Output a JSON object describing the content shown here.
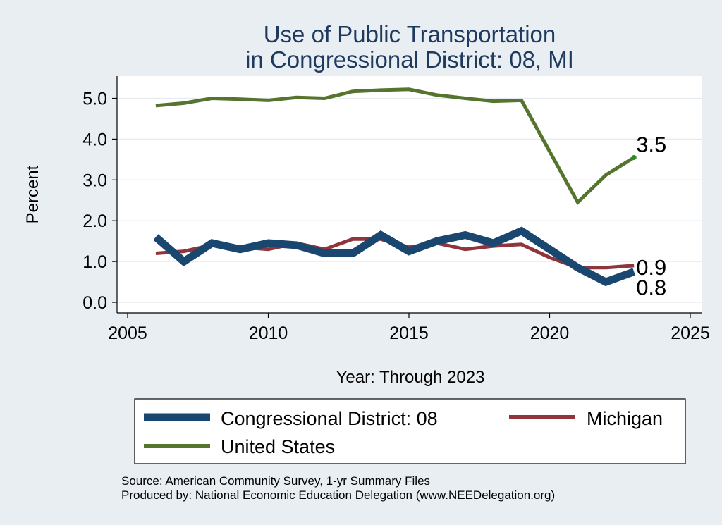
{
  "chart_data": {
    "type": "line",
    "title_line1": "Use of Public Transportation",
    "title_line2": "in Congressional District: 08, MI",
    "xlabel": "Year: Through 2023",
    "ylabel": "Percent",
    "xlim": [
      2005,
      2025
    ],
    "ylim": [
      0,
      5.2
    ],
    "x_ticks": [
      "2005",
      "2010",
      "2015",
      "2020",
      "2025"
    ],
    "y_ticks": [
      "0.0",
      "1.0",
      "2.0",
      "3.0",
      "4.0",
      "5.0"
    ],
    "grid": true,
    "legend_position": "bottom",
    "x": [
      2006,
      2007,
      2008,
      2009,
      2010,
      2011,
      2012,
      2013,
      2014,
      2015,
      2016,
      2017,
      2018,
      2019,
      2020,
      2021,
      2022,
      2023
    ],
    "series": [
      {
        "name": "Congressional District: 08",
        "color": "#1a476f",
        "values": [
          1.6,
          1.0,
          1.45,
          1.3,
          1.45,
          1.4,
          1.2,
          1.2,
          1.65,
          1.25,
          1.5,
          1.65,
          1.45,
          1.75,
          1.3,
          0.85,
          0.5,
          0.75
        ],
        "end_label": "0.8"
      },
      {
        "name": "Michigan",
        "color": "#90353b",
        "values": [
          1.2,
          1.25,
          1.4,
          1.35,
          1.3,
          1.45,
          1.3,
          1.55,
          1.55,
          1.35,
          1.45,
          1.3,
          1.38,
          1.42,
          1.1,
          0.85,
          0.85,
          0.9
        ],
        "end_label": "0.9"
      },
      {
        "name": "United States",
        "color": "#55752f",
        "values": [
          4.82,
          4.88,
          5.0,
          4.98,
          4.95,
          5.02,
          5.0,
          5.17,
          5.2,
          5.22,
          5.08,
          5.0,
          4.93,
          4.95,
          3.7,
          2.45,
          3.12,
          3.55
        ],
        "end_label": "3.5"
      }
    ],
    "legend": [
      "Congressional District: 08",
      "Michigan",
      "United States"
    ],
    "source_line1": "Source: American Community Survey, 1-yr Summary Files",
    "source_line2": "Produced by: National Economic Education Delegation (www.NEEDelegation.org)"
  }
}
